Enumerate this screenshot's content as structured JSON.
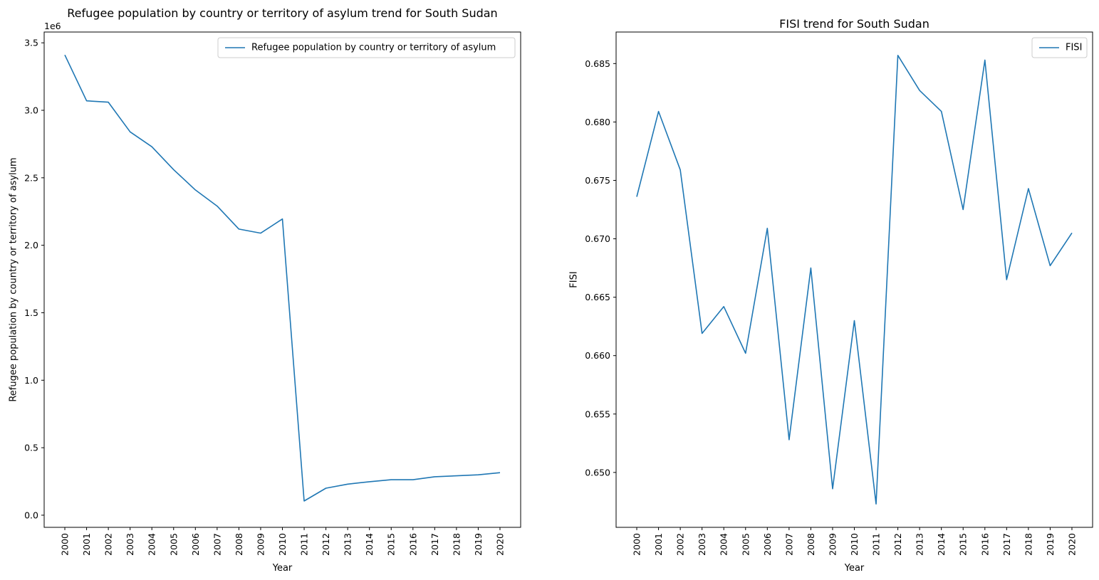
{
  "chart_data": [
    {
      "type": "line",
      "title": "Refugee population by country or territory of asylum trend for South Sudan",
      "xlabel": "Year",
      "ylabel": "Refugee population by country or territory of asylum",
      "y_offset_label": "1e6",
      "categories": [
        "2000",
        "2001",
        "2002",
        "2003",
        "2004",
        "2005",
        "2006",
        "2007",
        "2008",
        "2009",
        "2010",
        "2011",
        "2012",
        "2013",
        "2014",
        "2015",
        "2016",
        "2017",
        "2018",
        "2019",
        "2020"
      ],
      "series": [
        {
          "name": "Refugee population by country or territory of asylum",
          "color": "#1f77b4",
          "values": [
            3410000,
            3070000,
            3060000,
            2840000,
            2730000,
            2560000,
            2410000,
            2290000,
            2120000,
            2090000,
            2195000,
            105000,
            200000,
            230000,
            248000,
            263000,
            263000,
            285000,
            292000,
            299000,
            315000
          ]
        }
      ],
      "ylim": [
        -0.09,
        3.58
      ],
      "y_scale": 1000000,
      "yticks": [
        0.0,
        0.5,
        1.0,
        1.5,
        2.0,
        2.5,
        3.0,
        3.5
      ],
      "ytick_labels": [
        "0.0",
        "0.5",
        "1.0",
        "1.5",
        "2.0",
        "2.5",
        "3.0",
        "3.5"
      ],
      "legend": "top-right",
      "grid": false
    },
    {
      "type": "line",
      "title": "FISI trend for South Sudan",
      "xlabel": "Year",
      "ylabel": "FISI",
      "categories": [
        "2000",
        "2001",
        "2002",
        "2003",
        "2004",
        "2005",
        "2006",
        "2007",
        "2008",
        "2009",
        "2010",
        "2011",
        "2012",
        "2013",
        "2014",
        "2015",
        "2016",
        "2017",
        "2018",
        "2019",
        "2020"
      ],
      "series": [
        {
          "name": "FISI",
          "color": "#1f77b4",
          "values": [
            0.6736,
            0.6809,
            0.6759,
            0.6619,
            0.6642,
            0.6602,
            0.6709,
            0.6528,
            0.6675,
            0.6486,
            0.663,
            0.6473,
            0.6857,
            0.6827,
            0.6809,
            0.6725,
            0.6853,
            0.6665,
            0.6743,
            0.6677,
            0.6705
          ]
        }
      ],
      "ylim": [
        0.6453,
        0.6877
      ],
      "y_scale": 1,
      "yticks": [
        0.65,
        0.655,
        0.66,
        0.665,
        0.67,
        0.675,
        0.68,
        0.685
      ],
      "ytick_labels": [
        "0.650",
        "0.655",
        "0.660",
        "0.665",
        "0.670",
        "0.675",
        "0.680",
        "0.685"
      ],
      "legend": "top-right",
      "grid": false
    }
  ]
}
